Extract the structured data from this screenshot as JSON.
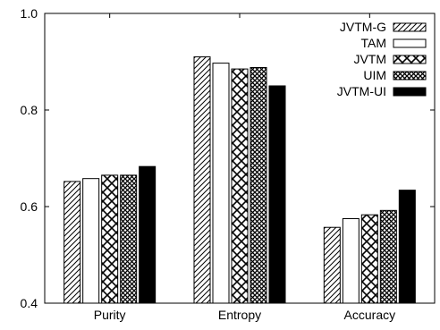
{
  "chart_data": {
    "type": "bar",
    "categories": [
      "Purity",
      "Entropy",
      "Accuracy"
    ],
    "series": [
      {
        "name": "JVTM-G",
        "values": [
          0.652,
          0.91,
          0.557
        ],
        "pattern": "diagonal"
      },
      {
        "name": "TAM",
        "values": [
          0.658,
          0.897,
          0.575
        ],
        "pattern": "empty"
      },
      {
        "name": "JVTM",
        "values": [
          0.665,
          0.885,
          0.583
        ],
        "pattern": "crosshatch"
      },
      {
        "name": "UIM",
        "values": [
          0.665,
          0.888,
          0.592
        ],
        "pattern": "dense-crosshatch"
      },
      {
        "name": "JVTM-UI",
        "values": [
          0.683,
          0.85,
          0.634
        ],
        "pattern": "solid"
      }
    ],
    "title": "",
    "xlabel": "",
    "ylabel": "",
    "ylim": [
      0.4,
      1.0
    ],
    "yticks": [
      "0.4",
      "0.6",
      "0.8",
      "1.0"
    ],
    "grid": false,
    "legend_position": "top-right"
  }
}
